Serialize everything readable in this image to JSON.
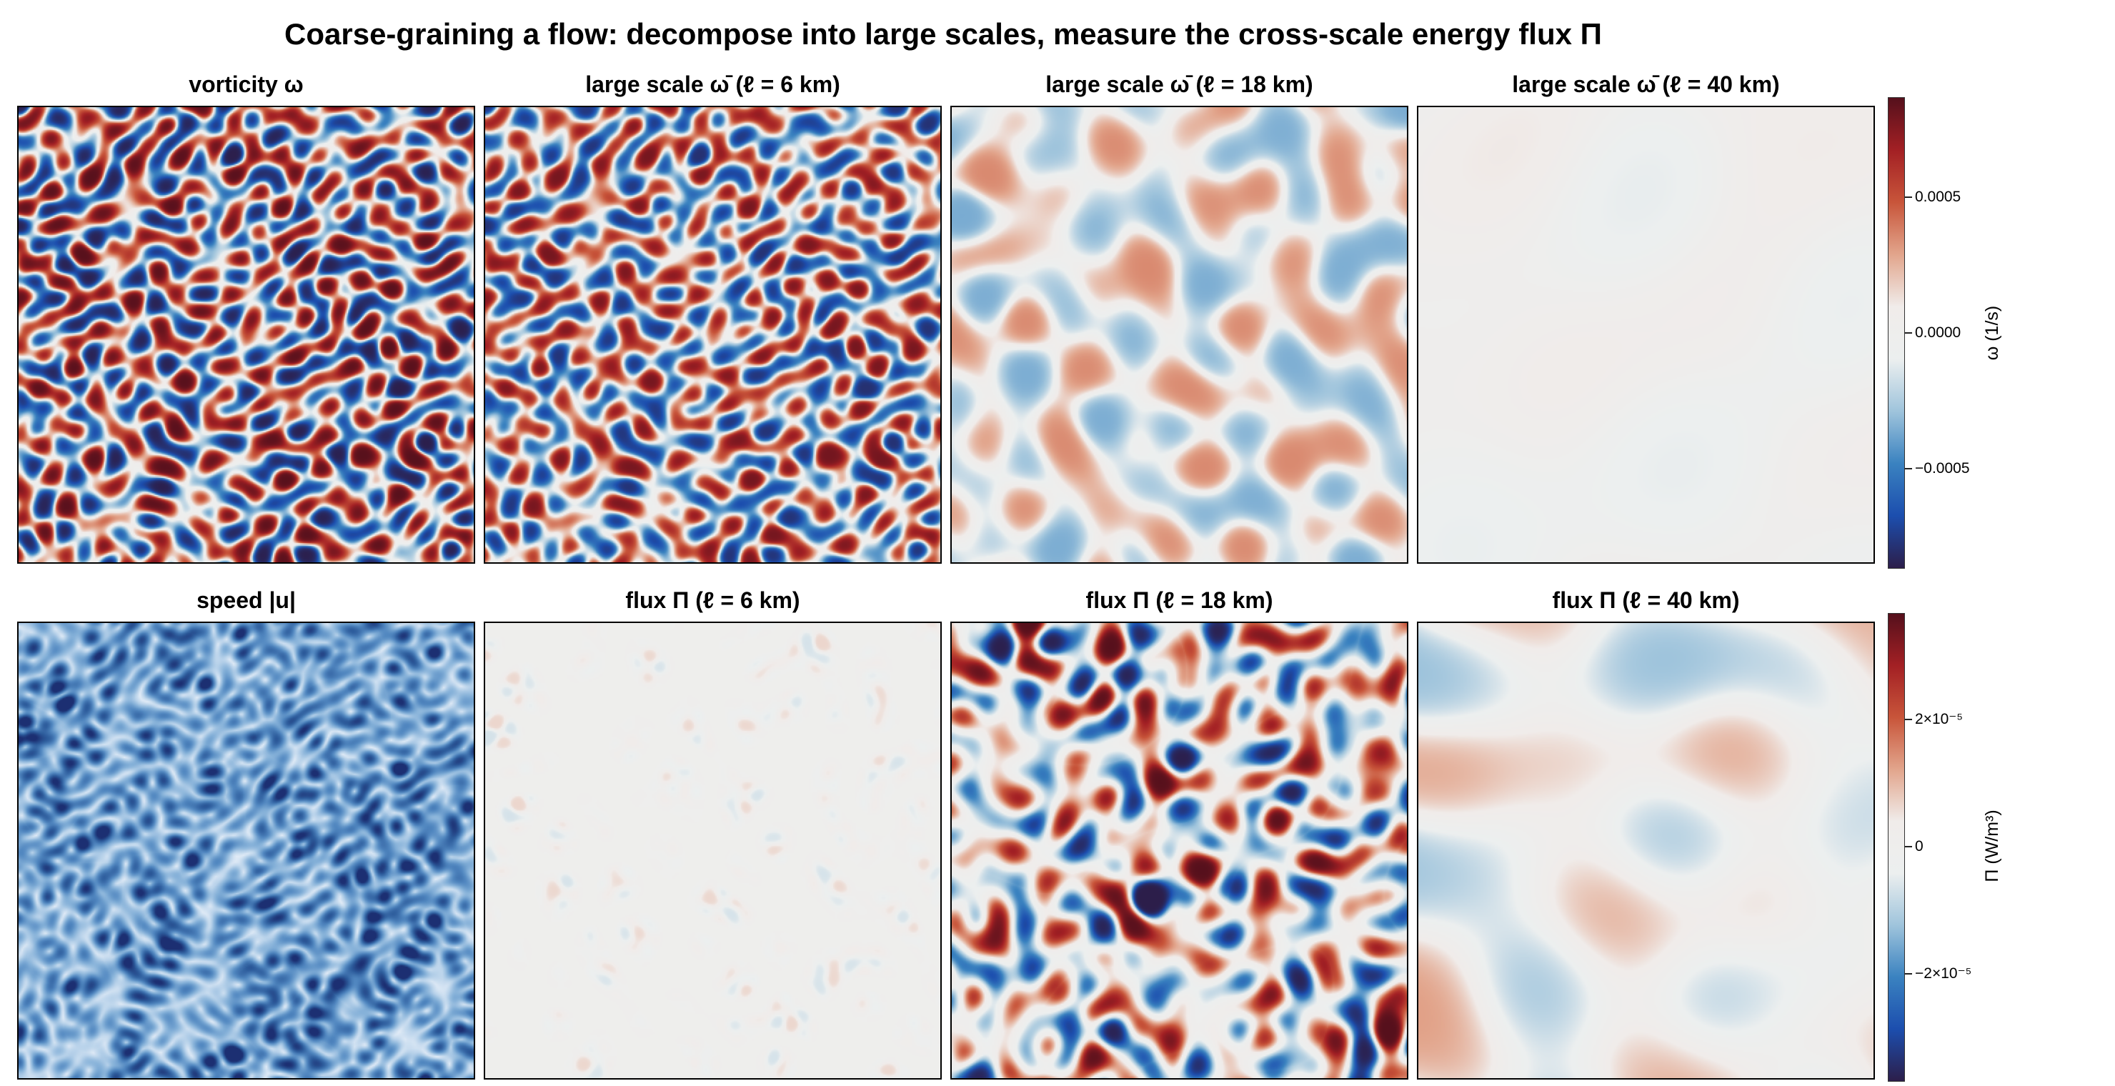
{
  "figure": {
    "title": "Coarse-graining a flow: decompose into large scales, measure the cross-scale energy flux Π"
  },
  "panels": [
    {
      "row": 0,
      "col": 0,
      "title": "vorticity ω",
      "field": "vorticity",
      "smoothing": 0,
      "amplitude": 1.0
    },
    {
      "row": 0,
      "col": 1,
      "title": "large scale ω̄  (ℓ = 6 km)",
      "field": "vorticity",
      "smoothing": 6,
      "amplitude": 0.92
    },
    {
      "row": 0,
      "col": 2,
      "title": "large scale ω̄  (ℓ = 18 km)",
      "field": "vorticity",
      "smoothing": 18,
      "amplitude": 0.42
    },
    {
      "row": 0,
      "col": 3,
      "title": "large scale ω̄  (ℓ = 40 km)",
      "field": "vorticity",
      "smoothing": 40,
      "amplitude": 0.13
    },
    {
      "row": 1,
      "col": 0,
      "title": "speed |u|",
      "field": "speed",
      "smoothing": 0,
      "amplitude": 1.0
    },
    {
      "row": 1,
      "col": 1,
      "title": "flux Π  (ℓ = 6 km)",
      "field": "flux",
      "smoothing": 6,
      "amplitude": 0.18
    },
    {
      "row": 1,
      "col": 2,
      "title": "flux Π  (ℓ = 18 km)",
      "field": "flux",
      "smoothing": 18,
      "amplitude": 1.0
    },
    {
      "row": 1,
      "col": 3,
      "title": "flux Π  (ℓ = 40 km)",
      "field": "flux",
      "smoothing": 40,
      "amplitude": 0.38
    }
  ],
  "colorbars": {
    "vorticity": {
      "label": "ω (1/s)",
      "range": [
        -0.00085,
        0.00085
      ],
      "ticks": [
        {
          "value": 0.0005,
          "label": "0.0005"
        },
        {
          "value": 0.0,
          "label": "0.0000"
        },
        {
          "value": -0.0005,
          "label": "−0.0005"
        }
      ]
    },
    "flux": {
      "label": "Π (W/m³)",
      "range": [
        -3.55e-05,
        3.55e-05
      ],
      "ticks": [
        {
          "value": 2e-05,
          "label": "2×10⁻⁵"
        },
        {
          "value": 0,
          "label": "0"
        },
        {
          "value": -2e-05,
          "label": "−2×10⁻⁵"
        }
      ]
    }
  },
  "colormaps": {
    "diverging": [
      "#2c1e4a",
      "#1c4eae",
      "#3a82c0",
      "#9fc4dc",
      "#ecefef",
      "#f0ecea",
      "#e2a58c",
      "#c8553a",
      "#a32024",
      "#55101c"
    ],
    "speed": [
      "#ffffff",
      "#dfeaf6",
      "#b8d2ea",
      "#84b0d8",
      "#5187c0",
      "#2d5c9c",
      "#1c2f72"
    ]
  },
  "chart_data": [
    {
      "type": "heatmap",
      "title": "vorticity ω",
      "colorbar_label": "ω (1/s)",
      "range": [
        -0.00085,
        0.00085
      ],
      "pattern": "random small-scale vortices"
    },
    {
      "type": "heatmap",
      "title": "large scale ω̄  (ℓ = 6 km)",
      "colorbar_label": "ω (1/s)",
      "range": [
        -0.00085,
        0.00085
      ]
    },
    {
      "type": "heatmap",
      "title": "large scale ω̄  (ℓ = 18 km)",
      "colorbar_label": "ω (1/s)",
      "range": [
        -0.00085,
        0.00085
      ]
    },
    {
      "type": "heatmap",
      "title": "large scale ω̄  (ℓ = 40 km)",
      "colorbar_label": "ω (1/s)",
      "range": [
        -0.00085,
        0.00085
      ]
    },
    {
      "type": "heatmap",
      "title": "speed |u|",
      "colormap": "sequential blues",
      "pattern": "speed magnitude"
    },
    {
      "type": "heatmap",
      "title": "flux Π  (ℓ = 6 km)",
      "colorbar_label": "Π (W/m³)",
      "range": [
        -3.55e-05,
        3.55e-05
      ]
    },
    {
      "type": "heatmap",
      "title": "flux Π  (ℓ = 18 km)",
      "colorbar_label": "Π (W/m³)",
      "range": [
        -3.55e-05,
        3.55e-05
      ]
    },
    {
      "type": "heatmap",
      "title": "flux Π  (ℓ = 40 km)",
      "colorbar_label": "Π (W/m³)",
      "range": [
        -3.55e-05,
        3.55e-05
      ]
    }
  ]
}
